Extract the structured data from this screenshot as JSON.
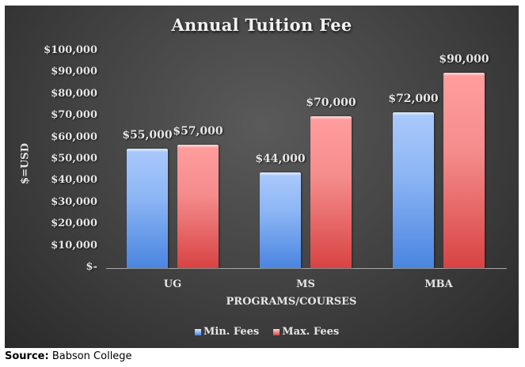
{
  "chart_data": {
    "type": "bar",
    "title": "Annual Tuition Fee",
    "xlabel": "PROGRAMS/COURSES",
    "ylabel": "$=USD",
    "categories": [
      "UG",
      "MS",
      "MBA"
    ],
    "series": [
      {
        "name": "Min. Fees",
        "values": [
          55000,
          44000,
          72000
        ],
        "color": "#6fa0ee",
        "labels": [
          "$55,000",
          "$44,000",
          "$72,000"
        ]
      },
      {
        "name": "Max. Fees",
        "values": [
          57000,
          70000,
          90000
        ],
        "color": "#f07a7a",
        "labels": [
          "$57,000",
          "$70,000",
          "$90,000"
        ]
      }
    ],
    "ylim": [
      0,
      100000
    ],
    "yticks": [
      "$-",
      "$10,000",
      "$20,000",
      "$30,000",
      "$40,000",
      "$50,000",
      "$60,000",
      "$70,000",
      "$80,000",
      "$90,000",
      "$100,000"
    ],
    "grid": false,
    "legend_position": "bottom",
    "data_labels": true
  },
  "source": {
    "label": "Source:",
    "text": " Babson College"
  }
}
